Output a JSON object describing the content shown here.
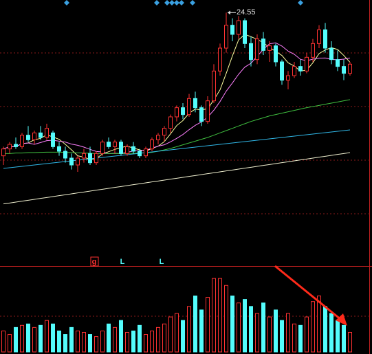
{
  "chart_data": {
    "type": "candlestick",
    "up_color": "#ff3232",
    "down_color": "#54fcfc",
    "ylim": [
      14.3,
      25.1
    ],
    "vlim": [
      0,
      110
    ],
    "candles": [
      [
        18.3,
        18.7,
        17.9,
        18.6
      ],
      [
        18.6,
        18.9,
        18.4,
        18.8
      ],
      [
        18.8,
        19.1,
        18.6,
        18.7
      ],
      [
        18.7,
        19.3,
        18.6,
        19.2
      ],
      [
        19.2,
        19.6,
        18.9,
        19.0
      ],
      [
        19.0,
        19.4,
        18.8,
        19.3
      ],
      [
        19.3,
        19.6,
        19.0,
        19.1
      ],
      [
        19.1,
        19.7,
        19.0,
        19.5
      ],
      [
        19.3,
        19.4,
        18.6,
        18.7
      ],
      [
        18.7,
        18.9,
        18.3,
        18.5
      ],
      [
        18.5,
        18.7,
        18.0,
        18.2
      ],
      [
        18.2,
        18.4,
        17.7,
        17.9
      ],
      [
        17.9,
        18.3,
        17.6,
        18.2
      ],
      [
        18.2,
        18.6,
        18.0,
        18.4
      ],
      [
        18.4,
        18.7,
        17.9,
        18.0
      ],
      [
        18.0,
        18.5,
        17.9,
        18.4
      ],
      [
        18.4,
        19.0,
        18.3,
        18.9
      ],
      [
        18.9,
        19.1,
        18.6,
        18.7
      ],
      [
        18.7,
        19.0,
        18.4,
        18.9
      ],
      [
        18.9,
        19.0,
        18.3,
        18.4
      ],
      [
        18.4,
        18.8,
        18.3,
        18.7
      ],
      [
        18.7,
        18.9,
        18.4,
        18.5
      ],
      [
        18.5,
        18.6,
        18.2,
        18.3
      ],
      [
        18.3,
        18.7,
        18.2,
        18.6
      ],
      [
        18.6,
        19.1,
        18.5,
        19.0
      ],
      [
        19.0,
        19.3,
        18.8,
        19.2
      ],
      [
        19.2,
        19.6,
        18.9,
        19.5
      ],
      [
        19.5,
        20.1,
        19.3,
        20.0
      ],
      [
        20.0,
        20.5,
        19.8,
        20.4
      ],
      [
        20.4,
        20.6,
        19.9,
        20.1
      ],
      [
        20.1,
        21.0,
        20.0,
        20.8
      ],
      [
        20.8,
        21.1,
        20.2,
        20.4
      ],
      [
        20.4,
        20.5,
        19.6,
        19.8
      ],
      [
        19.8,
        20.9,
        19.7,
        20.7
      ],
      [
        20.7,
        22.3,
        20.6,
        22.0
      ],
      [
        22.0,
        23.2,
        21.8,
        23.0
      ],
      [
        23.0,
        24.55,
        22.8,
        24.0
      ],
      [
        24.0,
        24.3,
        23.3,
        23.6
      ],
      [
        23.6,
        24.4,
        23.4,
        24.2
      ],
      [
        24.2,
        24.3,
        23.0,
        23.2
      ],
      [
        23.2,
        23.5,
        22.2,
        22.5
      ],
      [
        22.5,
        23.6,
        22.3,
        23.4
      ],
      [
        23.4,
        23.7,
        22.7,
        22.9
      ],
      [
        22.9,
        23.3,
        22.4,
        23.1
      ],
      [
        23.1,
        23.2,
        22.2,
        22.4
      ],
      [
        22.4,
        22.5,
        21.4,
        21.6
      ],
      [
        21.6,
        22.0,
        21.2,
        21.8
      ],
      [
        21.8,
        22.4,
        21.7,
        22.2
      ],
      [
        22.2,
        22.5,
        21.8,
        22.0
      ],
      [
        22.0,
        22.8,
        21.9,
        22.6
      ],
      [
        22.6,
        23.4,
        22.4,
        23.2
      ],
      [
        23.2,
        24.0,
        23.0,
        23.8
      ],
      [
        23.8,
        24.1,
        22.8,
        23.0
      ],
      [
        23.0,
        23.3,
        22.3,
        22.5
      ],
      [
        22.5,
        22.9,
        22.0,
        22.2
      ],
      [
        22.2,
        22.5,
        21.6,
        21.9
      ],
      [
        21.9,
        22.4,
        21.8,
        22.3
      ]
    ],
    "volumes": [
      30,
      25,
      35,
      38,
      40,
      35,
      38,
      45,
      40,
      30,
      25,
      35,
      30,
      28,
      25,
      22,
      30,
      40,
      35,
      45,
      28,
      30,
      38,
      25,
      30,
      35,
      40,
      50,
      55,
      45,
      65,
      80,
      60,
      78,
      105,
      105,
      95,
      80,
      70,
      75,
      65,
      55,
      70,
      50,
      60,
      45,
      55,
      40,
      38,
      50,
      72,
      80,
      65,
      55,
      45,
      38,
      28
    ],
    "lines": [
      {
        "color": "#ffffa0",
        "values": [
          18.6,
          18.7,
          18.7,
          18.83,
          18.86,
          19.0,
          19.06,
          19.22,
          19.12,
          19.02,
          18.8,
          18.56,
          18.3,
          18.24,
          18.14,
          18.18,
          18.38,
          18.48,
          18.58,
          18.66,
          18.72,
          18.64,
          18.56,
          18.5,
          18.62,
          18.72,
          18.92,
          19.26,
          19.62,
          19.84,
          20.16,
          20.34,
          20.3,
          20.36,
          20.74,
          21.18,
          21.9,
          22.66,
          23.36,
          23.6,
          23.5,
          23.38,
          23.24,
          23.02,
          22.86,
          22.68,
          22.36,
          22.22,
          22.0,
          22.04,
          22.36,
          22.76,
          22.92,
          23.02,
          22.94,
          22.68,
          22.38
        ]
      },
      {
        "color": "#ff80ff",
        "values": [
          18.6,
          18.7,
          18.7,
          18.83,
          18.86,
          18.8,
          18.88,
          18.96,
          18.98,
          18.94,
          18.9,
          18.81,
          18.76,
          18.68,
          18.58,
          18.49,
          18.47,
          18.39,
          18.41,
          18.4,
          18.45,
          18.51,
          18.52,
          18.54,
          18.64,
          18.72,
          18.78,
          18.91,
          19.06,
          19.23,
          19.44,
          19.63,
          19.78,
          19.99,
          20.29,
          20.67,
          21.12,
          21.48,
          21.86,
          22.17,
          22.34,
          22.64,
          22.95,
          23.19,
          23.23,
          23.09,
          22.87,
          22.73,
          22.51,
          22.45,
          22.52,
          22.56,
          22.57,
          22.51,
          22.49,
          22.52,
          22.57
        ]
      },
      {
        "color": "#40c040",
        "values": [
          18.4,
          18.4,
          18.42,
          18.42,
          18.44,
          18.44,
          18.45,
          18.46,
          18.46,
          18.46,
          18.45,
          18.44,
          18.43,
          18.42,
          18.41,
          18.4,
          18.4,
          18.4,
          18.4,
          18.4,
          18.4,
          18.41,
          18.42,
          18.43,
          18.45,
          18.5,
          18.56,
          18.62,
          18.7,
          18.78,
          18.86,
          18.94,
          19.02,
          19.1,
          19.2,
          19.3,
          19.4,
          19.5,
          19.6,
          19.7,
          19.8,
          19.88,
          19.96,
          20.04,
          20.1,
          20.16,
          20.22,
          20.28,
          20.34,
          20.4,
          20.45,
          20.5,
          20.55,
          20.6,
          20.65,
          20.7,
          20.75
        ]
      },
      {
        "color": "#30b8e8",
        "values": [
          17.75,
          17.78,
          17.81,
          17.84,
          17.87,
          17.9,
          17.93,
          17.96,
          17.99,
          18.02,
          18.05,
          18.08,
          18.11,
          18.14,
          18.17,
          18.2,
          18.23,
          18.26,
          18.29,
          18.32,
          18.35,
          18.38,
          18.41,
          18.44,
          18.47,
          18.5,
          18.53,
          18.56,
          18.59,
          18.62,
          18.65,
          18.68,
          18.71,
          18.74,
          18.77,
          18.8,
          18.83,
          18.86,
          18.89,
          18.92,
          18.95,
          18.98,
          19.01,
          19.04,
          19.07,
          19.1,
          19.13,
          19.16,
          19.19,
          19.22,
          19.25,
          19.28,
          19.31,
          19.34,
          19.37,
          19.4,
          19.43
        ]
      },
      {
        "color": "#f0f0d0",
        "values": [
          16.2,
          16.24,
          16.28,
          16.32,
          16.36,
          16.4,
          16.44,
          16.48,
          16.52,
          16.56,
          16.6,
          16.64,
          16.68,
          16.72,
          16.76,
          16.8,
          16.84,
          16.88,
          16.92,
          16.96,
          17.0,
          17.04,
          17.08,
          17.12,
          17.16,
          17.2,
          17.24,
          17.28,
          17.32,
          17.36,
          17.4,
          17.44,
          17.48,
          17.52,
          17.56,
          17.6,
          17.64,
          17.68,
          17.72,
          17.76,
          17.8,
          17.84,
          17.88,
          17.92,
          17.96,
          18.0,
          18.04,
          18.08,
          18.12,
          18.16,
          18.2,
          18.24,
          18.28,
          18.32,
          18.36,
          18.4,
          18.44
        ]
      }
    ],
    "markers": [
      "g",
      "L",
      "L"
    ]
  }
}
